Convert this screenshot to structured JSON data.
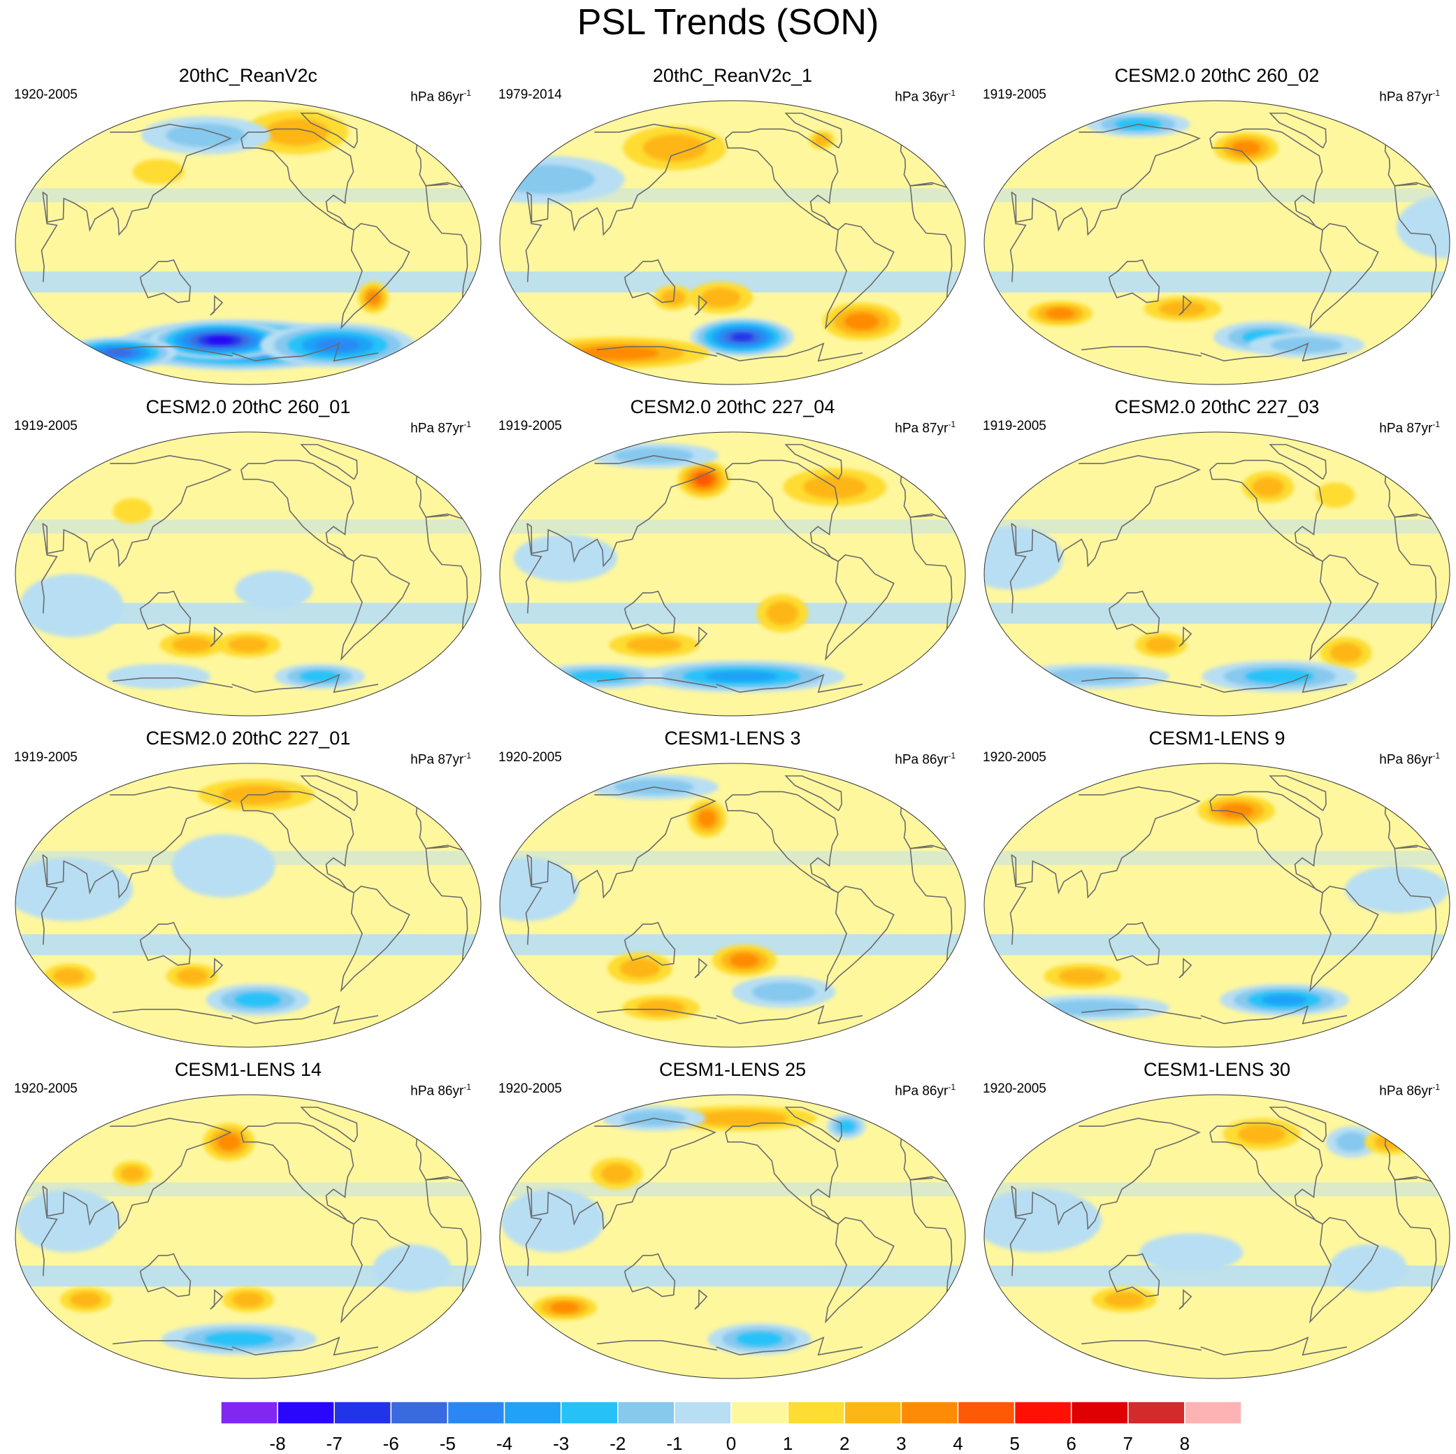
{
  "title": "PSL Trends (SON)",
  "panels": [
    {
      "title": "20thC_ReanV2c",
      "period": "1920-2005",
      "units_base": "hPa 86yr",
      "units_exp": "-1",
      "blobs": [
        {
          "lon": -170,
          "lat": -65,
          "rx": 95,
          "ry": 16,
          "v": -7
        },
        {
          "lon": 170,
          "lat": -62,
          "rx": 55,
          "ry": 12,
          "v": -8
        },
        {
          "lon": 40,
          "lat": -70,
          "rx": 45,
          "ry": 10,
          "v": -6
        },
        {
          "lon": -60,
          "lat": -65,
          "rx": 60,
          "ry": 14,
          "v": -5
        },
        {
          "lon": -55,
          "lat": -35,
          "rx": 12,
          "ry": 10,
          "v": 3
        },
        {
          "lon": -100,
          "lat": 70,
          "rx": 40,
          "ry": 14,
          "v": 2
        },
        {
          "lon": 150,
          "lat": 68,
          "rx": 50,
          "ry": 12,
          "v": -2
        },
        {
          "lon": 120,
          "lat": 45,
          "rx": 20,
          "ry": 8,
          "v": 1
        }
      ]
    },
    {
      "title": "20thC_ReanV2c_1",
      "period": "1979-2014",
      "units_base": "hPa 36yr",
      "units_exp": "-1",
      "blobs": [
        {
          "lon": -150,
          "lat": -60,
          "rx": 40,
          "ry": 12,
          "v": -7
        },
        {
          "lon": -40,
          "lat": -50,
          "rx": 30,
          "ry": 12,
          "v": 3
        },
        {
          "lon": 60,
          "lat": -70,
          "rx": 70,
          "ry": 10,
          "v": 3
        },
        {
          "lon": 150,
          "lat": -35,
          "rx": 15,
          "ry": 8,
          "v": 2
        },
        {
          "lon": -170,
          "lat": -35,
          "rx": 25,
          "ry": 10,
          "v": 2
        },
        {
          "lon": 140,
          "lat": 60,
          "rx": 40,
          "ry": 14,
          "v": 2
        },
        {
          "lon": -60,
          "lat": 65,
          "rx": 10,
          "ry": 6,
          "v": 2
        },
        {
          "lon": 40,
          "lat": 40,
          "rx": 60,
          "ry": 15,
          "v": -2
        }
      ]
    },
    {
      "title": "CESM2.0 20thC 260_02",
      "period": "1919-2005",
      "units_base": "hPa 87yr",
      "units_exp": "-1",
      "blobs": [
        {
          "lon": 60,
          "lat": -45,
          "rx": 25,
          "ry": 8,
          "v": 3
        },
        {
          "lon": 170,
          "lat": -42,
          "rx": 30,
          "ry": 8,
          "v": 2
        },
        {
          "lon": -110,
          "lat": -60,
          "rx": 40,
          "ry": 10,
          "v": -3
        },
        {
          "lon": -60,
          "lat": -65,
          "rx": 45,
          "ry": 8,
          "v": -2
        },
        {
          "lon": -130,
          "lat": 60,
          "rx": 25,
          "ry": 10,
          "v": 3
        },
        {
          "lon": 90,
          "lat": 75,
          "rx": 40,
          "ry": 8,
          "v": -3
        },
        {
          "lon": 20,
          "lat": 10,
          "rx": 40,
          "ry": 20,
          "v": -1
        }
      ]
    },
    {
      "title": "CESM2.0 20thC 260_01",
      "period": "1919-2005",
      "units_base": "hPa 87yr",
      "units_exp": "-1",
      "blobs": [
        {
          "lon": 150,
          "lat": -45,
          "rx": 25,
          "ry": 8,
          "v": 2
        },
        {
          "lon": -160,
          "lat": -45,
          "rx": 25,
          "ry": 8,
          "v": 2
        },
        {
          "lon": -80,
          "lat": -65,
          "rx": 35,
          "ry": 8,
          "v": -3
        },
        {
          "lon": 100,
          "lat": -65,
          "rx": 40,
          "ry": 8,
          "v": -1
        },
        {
          "lon": 60,
          "lat": -20,
          "rx": 40,
          "ry": 20,
          "v": -1
        },
        {
          "lon": -140,
          "lat": -10,
          "rx": 30,
          "ry": 12,
          "v": -1
        },
        {
          "lon": 100,
          "lat": 40,
          "rx": 15,
          "ry": 8,
          "v": 1
        }
      ]
    },
    {
      "title": "CESM2.0 20thC 227_04",
      "period": "1919-2005",
      "units_base": "hPa 87yr",
      "units_exp": "-1",
      "blobs": [
        {
          "lon": 170,
          "lat": 60,
          "rx": 20,
          "ry": 12,
          "v": 4
        },
        {
          "lon": -60,
          "lat": 55,
          "rx": 40,
          "ry": 12,
          "v": 2
        },
        {
          "lon": 130,
          "lat": -45,
          "rx": 35,
          "ry": 8,
          "v": 2
        },
        {
          "lon": -120,
          "lat": -25,
          "rx": 20,
          "ry": 12,
          "v": 2
        },
        {
          "lon": -150,
          "lat": -65,
          "rx": 80,
          "ry": 10,
          "v": -4
        },
        {
          "lon": 50,
          "lat": -65,
          "rx": 50,
          "ry": 8,
          "v": -3
        },
        {
          "lon": 90,
          "lat": 75,
          "rx": 50,
          "ry": 8,
          "v": -2
        },
        {
          "lon": 70,
          "lat": 10,
          "rx": 40,
          "ry": 15,
          "v": -1
        }
      ]
    },
    {
      "title": "CESM2.0 20thC 227_03",
      "period": "1919-2005",
      "units_base": "hPa 87yr",
      "units_exp": "-1",
      "blobs": [
        {
          "lon": -110,
          "lat": 55,
          "rx": 20,
          "ry": 10,
          "v": 2
        },
        {
          "lon": -50,
          "lat": 50,
          "rx": 15,
          "ry": 8,
          "v": 1
        },
        {
          "lon": 150,
          "lat": -45,
          "rx": 20,
          "ry": 8,
          "v": 2
        },
        {
          "lon": -40,
          "lat": -50,
          "rx": 20,
          "ry": 10,
          "v": 2
        },
        {
          "lon": -90,
          "lat": -65,
          "rx": 60,
          "ry": 10,
          "v": -3
        },
        {
          "lon": 60,
          "lat": -65,
          "rx": 60,
          "ry": 8,
          "v": -2
        },
        {
          "lon": 40,
          "lat": 10,
          "rx": 40,
          "ry": 20,
          "v": -1
        }
      ]
    },
    {
      "title": "CESM2.0 20thC 227_01",
      "period": "1919-2005",
      "units_base": "hPa 87yr",
      "units_exp": "-1",
      "blobs": [
        {
          "lon": -150,
          "lat": 70,
          "rx": 45,
          "ry": 10,
          "v": 2
        },
        {
          "lon": 40,
          "lat": -45,
          "rx": 20,
          "ry": 8,
          "v": 2
        },
        {
          "lon": 150,
          "lat": -45,
          "rx": 20,
          "ry": 8,
          "v": 2
        },
        {
          "lon": -150,
          "lat": -60,
          "rx": 40,
          "ry": 10,
          "v": -3
        },
        {
          "lon": 60,
          "lat": 10,
          "rx": 50,
          "ry": 20,
          "v": -1
        },
        {
          "lon": 180,
          "lat": 25,
          "rx": 40,
          "ry": 20,
          "v": -1
        }
      ]
    },
    {
      "title": "CESM1-LENS 3",
      "period": "1920-2005",
      "units_base": "hPa 86yr",
      "units_exp": "-1",
      "blobs": [
        {
          "lon": 175,
          "lat": 55,
          "rx": 15,
          "ry": 12,
          "v": 3
        },
        {
          "lon": 120,
          "lat": -40,
          "rx": 25,
          "ry": 10,
          "v": 2
        },
        {
          "lon": -150,
          "lat": -35,
          "rx": 25,
          "ry": 10,
          "v": 3
        },
        {
          "lon": 120,
          "lat": -65,
          "rx": 30,
          "ry": 8,
          "v": 2
        },
        {
          "lon": -110,
          "lat": -55,
          "rx": 40,
          "ry": 10,
          "v": -2
        },
        {
          "lon": 90,
          "lat": 75,
          "rx": 50,
          "ry": 8,
          "v": -2
        },
        {
          "lon": 40,
          "lat": 10,
          "rx": 40,
          "ry": 20,
          "v": -1
        }
      ]
    },
    {
      "title": "CESM1-LENS 9",
      "period": "1920-2005",
      "units_base": "hPa 86yr",
      "units_exp": "-1",
      "blobs": [
        {
          "lon": -140,
          "lat": 60,
          "rx": 30,
          "ry": 10,
          "v": 3
        },
        {
          "lon": 80,
          "lat": -45,
          "rx": 30,
          "ry": 8,
          "v": 2
        },
        {
          "lon": -90,
          "lat": -60,
          "rx": 50,
          "ry": 10,
          "v": -4
        },
        {
          "lon": 60,
          "lat": -65,
          "rx": 60,
          "ry": 8,
          "v": -2
        },
        {
          "lon": -20,
          "lat": 10,
          "rx": 40,
          "ry": 15,
          "v": -1
        }
      ]
    },
    {
      "title": "CESM1-LENS 14",
      "period": "1920-2005",
      "units_base": "hPa 86yr",
      "units_exp": "-1",
      "blobs": [
        {
          "lon": 180,
          "lat": 60,
          "rx": 20,
          "ry": 12,
          "v": 3
        },
        {
          "lon": 100,
          "lat": 40,
          "rx": 15,
          "ry": 8,
          "v": 2
        },
        {
          "lon": 60,
          "lat": -40,
          "rx": 20,
          "ry": 8,
          "v": 2
        },
        {
          "lon": -160,
          "lat": -40,
          "rx": 20,
          "ry": 8,
          "v": 2
        },
        {
          "lon": -170,
          "lat": -65,
          "rx": 60,
          "ry": 10,
          "v": -3
        },
        {
          "lon": 60,
          "lat": 10,
          "rx": 40,
          "ry": 20,
          "v": -1
        },
        {
          "lon": -30,
          "lat": -20,
          "rx": 30,
          "ry": 15,
          "v": -1
        }
      ]
    },
    {
      "title": "CESM1-LENS 25",
      "period": "1920-2005",
      "units_base": "hPa 86yr",
      "units_exp": "-1",
      "blobs": [
        {
          "lon": -150,
          "lat": 75,
          "rx": 60,
          "ry": 8,
          "v": 2
        },
        {
          "lon": 100,
          "lat": 40,
          "rx": 20,
          "ry": 10,
          "v": 2
        },
        {
          "lon": 50,
          "lat": -45,
          "rx": 25,
          "ry": 8,
          "v": 3
        },
        {
          "lon": -130,
          "lat": -65,
          "rx": 40,
          "ry": 10,
          "v": -3
        },
        {
          "lon": -20,
          "lat": 70,
          "rx": 15,
          "ry": 8,
          "v": -3
        },
        {
          "lon": 90,
          "lat": 75,
          "rx": 40,
          "ry": 8,
          "v": -2
        },
        {
          "lon": 60,
          "lat": 10,
          "rx": 40,
          "ry": 20,
          "v": -1
        }
      ]
    },
    {
      "title": "CESM1-LENS 30",
      "period": "1920-2005",
      "units_base": "hPa 86yr",
      "units_exp": "-1",
      "blobs": [
        {
          "lon": -110,
          "lat": 65,
          "rx": 30,
          "ry": 10,
          "v": 2
        },
        {
          "lon": -20,
          "lat": 60,
          "rx": 20,
          "ry": 10,
          "v": -2
        },
        {
          "lon": 20,
          "lat": 60,
          "rx": 20,
          "ry": 8,
          "v": 2
        },
        {
          "lon": 120,
          "lat": -40,
          "rx": 25,
          "ry": 8,
          "v": 2
        },
        {
          "lon": 60,
          "lat": 10,
          "rx": 50,
          "ry": 20,
          "v": -1
        },
        {
          "lon": 180,
          "lat": -10,
          "rx": 40,
          "ry": 12,
          "v": -1
        },
        {
          "lon": -40,
          "lat": -20,
          "rx": 30,
          "ry": 15,
          "v": -1
        }
      ]
    }
  ],
  "colorbar": {
    "labels": [
      "-8",
      "-7",
      "-6",
      "-5",
      "-4",
      "-3",
      "-2",
      "-1",
      "0",
      "1",
      "2",
      "3",
      "4",
      "5",
      "6",
      "7",
      "8"
    ],
    "colors": [
      "#8226F2",
      "#2A06FA",
      "#2234EA",
      "#3A6AE0",
      "#2A88F4",
      "#1FA2F7",
      "#25C2F8",
      "#86C8EE",
      "#B7DEF3",
      "#FEF79E",
      "#FEDC32",
      "#FEB617",
      "#FE8B05",
      "#FE5904",
      "#FE1004",
      "#DE0002",
      "#D32A2C",
      "#FDB3B3"
    ]
  }
}
